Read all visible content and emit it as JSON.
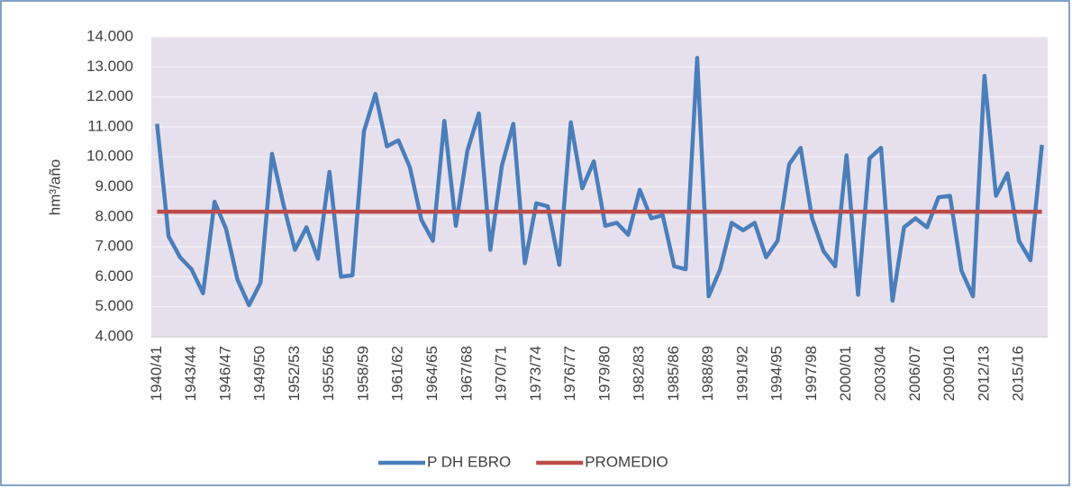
{
  "chart_data": {
    "type": "line",
    "y_label": "hm³/año",
    "categories": [
      "1940/41",
      null,
      null,
      "1943/44",
      null,
      null,
      "1946/47",
      null,
      null,
      "1949/50",
      null,
      null,
      "1952/53",
      null,
      null,
      "1955/56",
      null,
      null,
      "1958/59",
      null,
      null,
      "1961/62",
      null,
      null,
      "1964/65",
      null,
      null,
      "1967/68",
      null,
      null,
      "1970/71",
      null,
      null,
      "1973/74",
      null,
      null,
      "1976/77",
      null,
      null,
      "1979/80",
      null,
      null,
      "1982/83",
      null,
      null,
      "1985/86",
      null,
      null,
      "1988/89",
      null,
      null,
      "1991/92",
      null,
      null,
      "1994/95",
      null,
      null,
      "1997/98",
      null,
      null,
      "2000/01",
      null,
      null,
      "2003/04",
      null,
      null,
      "2006/07",
      null,
      null,
      "2009/10",
      null,
      null,
      "2012/13",
      null,
      null,
      "2015/16",
      null,
      null
    ],
    "series": [
      {
        "name": "P DH EBRO",
        "color": "#4a7ebb",
        "values": [
          11100,
          7350,
          6650,
          6250,
          5450,
          8500,
          7600,
          5900,
          5050,
          5800,
          10100,
          8400,
          6900,
          7650,
          6600,
          9500,
          6000,
          6050,
          10850,
          12100,
          10350,
          10550,
          9650,
          7900,
          7200,
          11200,
          7700,
          10200,
          11450,
          6900,
          9700,
          11100,
          6450,
          8450,
          8350,
          6400,
          11150,
          8950,
          9850,
          7700,
          7800,
          7400,
          8900,
          7950,
          8050,
          6350,
          6250,
          13300,
          5350,
          6250,
          7800,
          7550,
          7800,
          6650,
          7200,
          9750,
          10300,
          7950,
          6850,
          6350,
          10050,
          5400,
          9950,
          10300,
          5200,
          7650,
          7950,
          7650,
          8650,
          8700,
          6200,
          5350,
          12700,
          8700,
          9450,
          7200,
          6550,
          10400
        ]
      },
      {
        "name": "PROMEDIO",
        "color": "#be4b48",
        "values": [
          8170,
          8170,
          8170,
          8170,
          8170,
          8170,
          8170,
          8170,
          8170,
          8170,
          8170,
          8170,
          8170,
          8170,
          8170,
          8170,
          8170,
          8170,
          8170,
          8170,
          8170,
          8170,
          8170,
          8170,
          8170,
          8170,
          8170,
          8170,
          8170,
          8170,
          8170,
          8170,
          8170,
          8170,
          8170,
          8170,
          8170,
          8170,
          8170,
          8170,
          8170,
          8170,
          8170,
          8170,
          8170,
          8170,
          8170,
          8170,
          8170,
          8170,
          8170,
          8170,
          8170,
          8170,
          8170,
          8170,
          8170,
          8170,
          8170,
          8170,
          8170,
          8170,
          8170,
          8170,
          8170,
          8170,
          8170,
          8170,
          8170,
          8170,
          8170,
          8170,
          8170,
          8170,
          8170,
          8170,
          8170,
          8170
        ]
      }
    ],
    "ylim": [
      4000,
      14000
    ],
    "yticks": [
      {
        "value": 4000,
        "label": "4.000"
      },
      {
        "value": 5000,
        "label": "5.000"
      },
      {
        "value": 6000,
        "label": "6.000"
      },
      {
        "value": 7000,
        "label": "7.000"
      },
      {
        "value": 8000,
        "label": "8.000"
      },
      {
        "value": 9000,
        "label": "9.000"
      },
      {
        "value": 10000,
        "label": "10.000"
      },
      {
        "value": 11000,
        "label": "11.000"
      },
      {
        "value": 12000,
        "label": "12.000"
      },
      {
        "value": 13000,
        "label": "13.000"
      },
      {
        "value": 14000,
        "label": "14.000"
      }
    ],
    "grid": true,
    "legend": "bottom"
  }
}
